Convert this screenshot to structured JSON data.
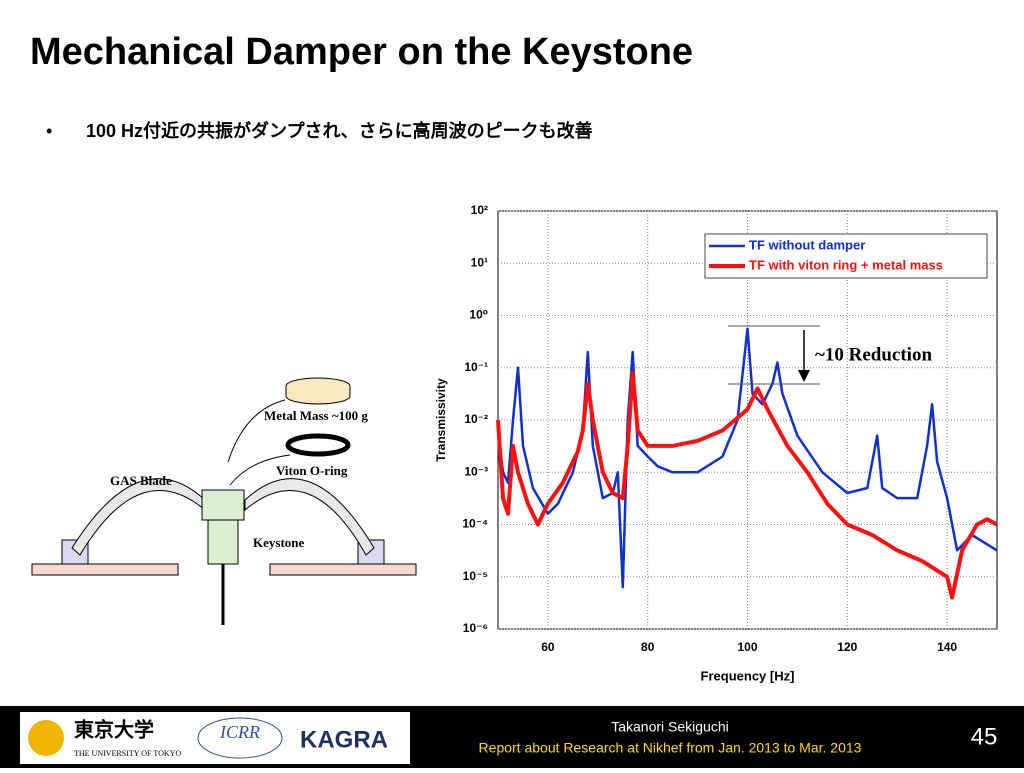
{
  "slide": {
    "title": "Mechanical Damper on the Keystone",
    "bullet": "100 Hz付近の共振がダンプされ、さらに高周波のピークも改善",
    "diagram": {
      "metal_mass": "Metal Mass ~100 g",
      "oring": "Viton O-ring",
      "blade": "GAS Blade",
      "keystone": "Keystone"
    },
    "footer": {
      "author": "Takanori Sekiguchi",
      "report": "Report about Research at Nikhef from Jan. 2013 to Mar. 2013",
      "page": "45",
      "logos": [
        "東京大学",
        "THE UNIVERSITY OF TOKYO",
        "ICRR",
        "KAGRA"
      ]
    }
  },
  "chart_data": {
    "type": "line",
    "xlabel": "Frequency [Hz]",
    "ylabel": "Transmissivity",
    "annotation": "~10 Reduction",
    "log_y": true,
    "grid": true,
    "legend": "upper right",
    "xlim": [
      50,
      150
    ],
    "xticks": [
      60,
      80,
      100,
      120,
      140
    ],
    "ylim": [
      1e-06,
      100
    ],
    "yticks": [
      {
        "value": 100,
        "label": "10²"
      },
      {
        "value": 10,
        "label": "10¹"
      },
      {
        "value": 1,
        "label": "10⁰"
      },
      {
        "value": 0.1,
        "label": "10⁻¹"
      },
      {
        "value": 0.01,
        "label": "10⁻²"
      },
      {
        "value": 0.001,
        "label": "10⁻³"
      },
      {
        "value": 0.0001,
        "label": "10⁻⁴"
      },
      {
        "value": 1e-05,
        "label": "10⁻⁵"
      },
      {
        "value": 1e-06,
        "label": "10⁻⁶"
      }
    ],
    "series": [
      {
        "name": "TF without damper",
        "color": "#1030d0",
        "x": [
          50,
          51,
          52,
          53,
          54,
          55,
          57,
          60,
          62,
          65,
          67,
          68,
          69,
          71,
          73,
          74,
          75,
          76,
          77,
          78,
          80,
          82,
          85,
          90,
          95,
          98,
          100,
          101,
          103,
          105,
          106,
          107,
          110,
          115,
          120,
          124,
          126,
          127,
          130,
          134,
          136,
          137,
          138,
          140,
          142,
          145,
          150
        ],
        "values": [
          0.0063,
          0.001,
          0.00063,
          0.01,
          0.1,
          0.0032,
          0.0005,
          0.00016,
          0.00025,
          0.001,
          0.0063,
          0.2,
          0.0032,
          0.00032,
          0.0004,
          0.001,
          6.3e-06,
          0.01,
          0.2,
          0.0032,
          0.002,
          0.0013,
          0.001,
          0.001,
          0.002,
          0.01,
          0.56,
          0.032,
          0.02,
          0.05,
          0.126,
          0.032,
          0.005,
          0.001,
          0.0004,
          0.0005,
          0.005,
          0.0005,
          0.00032,
          0.00032,
          0.0032,
          0.02,
          0.0016,
          0.00032,
          3.2e-05,
          6.3e-05,
          3.2e-05
        ]
      },
      {
        "name": "TF with viton ring + metal mass",
        "color": "#ff1010",
        "x": [
          50,
          51,
          52,
          53,
          54,
          56,
          58,
          60,
          63,
          66,
          67,
          68,
          69,
          71,
          73,
          75,
          76,
          77,
          78,
          80,
          85,
          90,
          95,
          100,
          102,
          104,
          108,
          112,
          116,
          120,
          125,
          130,
          135,
          140,
          141,
          143,
          146,
          148,
          150
        ],
        "values": [
          0.01,
          0.00032,
          0.00016,
          0.0032,
          0.001,
          0.00025,
          0.0001,
          0.00025,
          0.00063,
          0.0025,
          0.0063,
          0.05,
          0.01,
          0.001,
          0.0004,
          0.00032,
          0.0032,
          0.08,
          0.0063,
          0.0032,
          0.0032,
          0.004,
          0.0063,
          0.016,
          0.04,
          0.016,
          0.0032,
          0.001,
          0.00025,
          0.0001,
          6.3e-05,
          3.2e-05,
          2e-05,
          1e-05,
          4e-06,
          3.2e-05,
          0.0001,
          0.000126,
          0.0001
        ]
      }
    ]
  }
}
